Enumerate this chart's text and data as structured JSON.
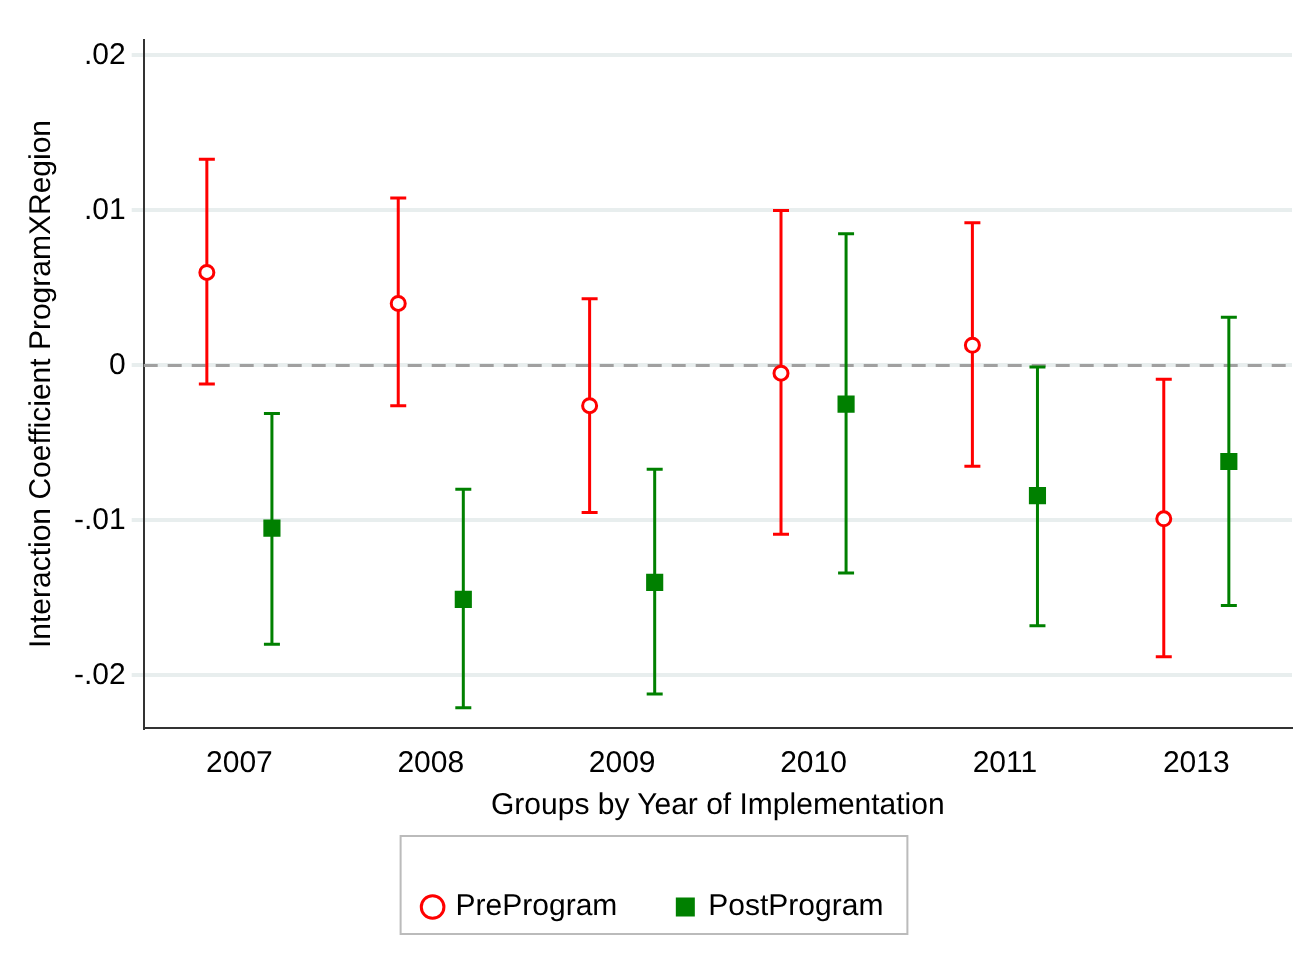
{
  "chart_data": {
    "type": "scatter",
    "xlabel": "Groups by Year of Implementation",
    "ylabel": "Interaction Coefficient ProgramXRegion",
    "categories": [
      "2007",
      "2008",
      "2009",
      "2010",
      "2011",
      "2013"
    ],
    "series": [
      {
        "name": "PreProgram",
        "color": "#ff0000",
        "marker": "circle",
        "values": [
          0.006,
          0.004,
          -0.0026,
          -0.0005,
          0.0013,
          -0.0099
        ],
        "errors": [
          [
            -0.0012,
            0.0133
          ],
          [
            -0.0026,
            0.0108
          ],
          [
            -0.0095,
            0.0043
          ],
          [
            -0.0109,
            0.01
          ],
          [
            -0.0065,
            0.0092
          ],
          [
            -0.0188,
            -0.0009
          ]
        ]
      },
      {
        "name": "PostProgram",
        "color": "#008000",
        "marker": "square",
        "values": [
          -0.0105,
          -0.0151,
          -0.014,
          -0.0025,
          -0.0084,
          -0.0062
        ],
        "errors": [
          [
            -0.018,
            -0.0031
          ],
          [
            -0.0221,
            -0.008
          ],
          [
            -0.0212,
            -0.0067
          ],
          [
            -0.0134,
            0.0085
          ],
          [
            -0.0168,
            -0.0001
          ],
          [
            -0.0155,
            0.0031
          ]
        ]
      }
    ],
    "ylim": [
      -0.0234,
      0.021
    ],
    "yticks": [
      {
        "value": -0.02,
        "label": "-.02"
      },
      {
        "value": -0.01,
        "label": "-.01"
      },
      {
        "value": 0,
        "label": "0"
      },
      {
        "value": 0.01,
        "label": ".01"
      },
      {
        "value": 0.02,
        "label": ".02"
      }
    ],
    "ref_lines": [
      {
        "axis": "y",
        "value": 0,
        "color": "#a0a0a0",
        "line_style": "dashed"
      }
    ],
    "grid": "y",
    "legend": "bottom"
  }
}
